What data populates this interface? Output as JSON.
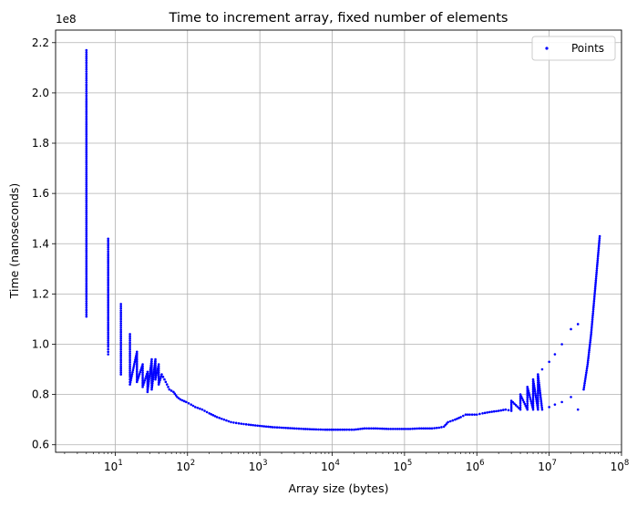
{
  "chart_data": {
    "type": "scatter",
    "title": "Time to increment array, fixed number of elements",
    "xlabel": "Array size (bytes)",
    "ylabel": "Time (nanoseconds)",
    "x_scale": "log",
    "xlim": [
      1.5,
      100000000
    ],
    "ylim": [
      57000000.0,
      225000000.0
    ],
    "y_offset_label": "1e8",
    "y_ticks": [
      60000000.0,
      80000000.0,
      100000000.0,
      120000000.0,
      140000000.0,
      160000000.0,
      180000000.0,
      200000000.0,
      220000000.0
    ],
    "y_tick_labels": [
      "0.6",
      "0.8",
      "1.0",
      "1.2",
      "1.4",
      "1.6",
      "1.8",
      "2.0",
      "2.2"
    ],
    "x_ticks": [
      10,
      100,
      1000,
      10000,
      100000,
      1000000,
      10000000,
      100000000
    ],
    "x_tick_labels": [
      [
        "10",
        "1"
      ],
      [
        "10",
        "2"
      ],
      [
        "10",
        "3"
      ],
      [
        "10",
        "4"
      ],
      [
        "10",
        "5"
      ],
      [
        "10",
        "6"
      ],
      [
        "10",
        "7"
      ],
      [
        "10",
        "8"
      ]
    ],
    "grid": true,
    "legend": {
      "position": "top-right",
      "entries": [
        "Points"
      ]
    },
    "series": [
      {
        "name": "Points",
        "color": "#0000ff",
        "x": [
          4,
          4,
          4,
          4,
          4,
          4,
          4,
          4,
          4,
          4,
          4,
          4,
          4,
          4,
          4,
          8,
          8,
          8,
          8,
          8,
          8,
          8,
          8,
          12,
          12,
          12,
          12,
          12,
          12,
          16,
          16,
          16,
          16,
          16,
          20,
          20,
          20,
          20,
          24,
          24,
          24,
          28,
          28,
          28,
          32,
          32,
          32,
          36,
          36,
          40,
          40,
          44,
          48,
          52,
          56,
          64,
          72,
          80,
          96,
          112,
          128,
          160,
          200,
          256,
          320,
          400,
          512,
          700,
          1000,
          1500,
          2000,
          3000,
          4000,
          6000,
          8000,
          12000,
          16000,
          20000,
          28000,
          40000,
          60000,
          80000,
          120000,
          160000,
          240000,
          300000,
          350000,
          400000,
          500000,
          600000,
          700000,
          800000,
          1000000,
          1200000,
          1500000,
          2000000,
          2500000,
          3000000,
          3000000,
          4000000,
          4000000,
          5000000,
          5000000,
          6000000,
          6000000,
          7000000,
          7000000,
          8000000,
          8000000,
          10000000,
          10000000,
          12000000,
          12000000,
          15000000,
          15000000,
          20000000,
          20000000,
          25000000,
          25000000,
          30000000,
          34000000,
          38000000,
          42000000,
          46000000,
          50000000
        ],
        "y": [
          217000000,
          212000000,
          205000000,
          198000000,
          190000000,
          182000000,
          174000000,
          166000000,
          158000000,
          150000000,
          142000000,
          134000000,
          126000000,
          118000000,
          111000000,
          142000000,
          136000000,
          128000000,
          120000000,
          112000000,
          104000000,
          99000000,
          96000000,
          116000000,
          110000000,
          104000000,
          98000000,
          92000000,
          88000000,
          104000000,
          98000000,
          92000000,
          87000000,
          84000000,
          97000000,
          93000000,
          89000000,
          85000000,
          92000000,
          87000000,
          83000000,
          89000000,
          85000000,
          81000000,
          94000000,
          88000000,
          82000000,
          94000000,
          86000000,
          92000000,
          84000000,
          88000000,
          86000000,
          84000000,
          82000000,
          81000000,
          79000000,
          78000000,
          77000000,
          76000000,
          75000000,
          74000000,
          72500000,
          71000000,
          70000000,
          69000000,
          68500000,
          68000000,
          67500000,
          67000000,
          66800000,
          66500000,
          66300000,
          66100000,
          66000000,
          66000000,
          66000000,
          66000000,
          66500000,
          66500000,
          66300000,
          66300000,
          66300000,
          66500000,
          66500000,
          66800000,
          67200000,
          69000000,
          70000000,
          71000000,
          72000000,
          72000000,
          72000000,
          72500000,
          73000000,
          73500000,
          74000000,
          73500000,
          77500000,
          74000000,
          80000000,
          74000000,
          83000000,
          74000000,
          86000000,
          74000000,
          88000000,
          74000000,
          90000000,
          75000000,
          93000000,
          76000000,
          96000000,
          77000000,
          100000000,
          79000000,
          106000000,
          74000000,
          108000000,
          82000000,
          92000000,
          104000000,
          118000000,
          131000000,
          143000000
        ]
      }
    ]
  }
}
